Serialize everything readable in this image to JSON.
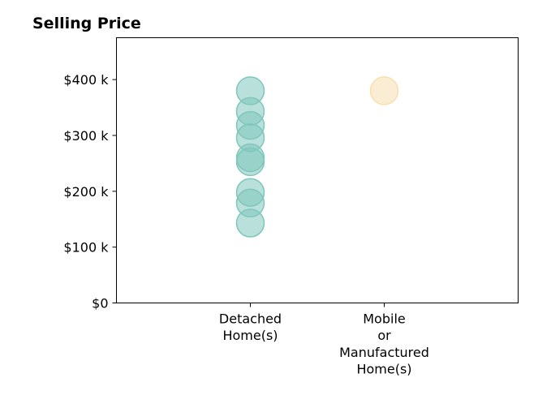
{
  "chart_data": {
    "type": "scatter",
    "title": "Selling Price",
    "xlabel": "",
    "ylabel": "",
    "categories": [
      [
        "Detached",
        "Home(s)"
      ],
      [
        "Mobile",
        "or",
        "Manufactured",
        "Home(s)"
      ]
    ],
    "y_ticks": [
      {
        "value": 0,
        "label": "$0"
      },
      {
        "value": 100000,
        "label": "$100 k"
      },
      {
        "value": 200000,
        "label": "$200 k"
      },
      {
        "value": 300000,
        "label": "$300 k"
      },
      {
        "value": 400000,
        "label": "$400 k"
      }
    ],
    "ylim": [
      0,
      475000
    ],
    "x_range": [
      -1,
      2
    ],
    "grid": false,
    "series": [
      {
        "category_index": 0,
        "color": "#7fc6bc",
        "values": [
          380000,
          343000,
          318000,
          296000,
          260000,
          253000,
          198000,
          179000,
          143000
        ]
      },
      {
        "category_index": 1,
        "color": "#f7dfae",
        "values": [
          380000
        ]
      }
    ]
  }
}
